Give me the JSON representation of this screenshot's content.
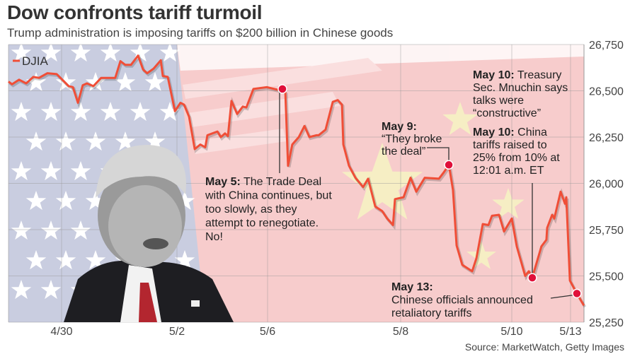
{
  "header": {
    "title": "Dow confronts tariff turmoil",
    "subtitle": "Trump administration is imposing tariffs on $200 billion in Chinese goods"
  },
  "source": "Source: MarketWatch, Getty Images",
  "colors": {
    "line": "#f04e37",
    "marker": "#e0103a",
    "background_pink": "#f7cccc",
    "flag_blue": "#c9cde0",
    "star_yellow": "#f6eec4"
  },
  "chart_data": {
    "type": "line",
    "title": "Dow confronts tariff turmoil",
    "ylim": [
      25250,
      26750
    ],
    "y_axis_side": "right",
    "y_ticks": [
      "26,750",
      "26,500",
      "26,250",
      "26,000",
      "25,750",
      "25,500",
      "25,250"
    ],
    "y_tick_values": [
      26750,
      26500,
      26250,
      26000,
      25750,
      25500,
      25250
    ],
    "x_ticks": [
      "4/30",
      "5/2",
      "5/6",
      "5/8",
      "5/10",
      "5/13"
    ],
    "grid": true,
    "legend": {
      "position": "top-left",
      "entries": [
        "DJIA"
      ]
    },
    "series": [
      {
        "name": "DJIA",
        "points": [
          [
            "4/29 09:30",
            26550
          ],
          [
            "4/29 09:56",
            26535
          ],
          [
            "4/29 10:48",
            26560
          ],
          [
            "4/29 11:40",
            26540
          ],
          [
            "4/29 12:32",
            26575
          ],
          [
            "4/29 13:14",
            26570
          ],
          [
            "4/29 14:16",
            26595
          ],
          [
            "4/29 15:24",
            26590
          ],
          [
            "4/30 09:35",
            26560
          ],
          [
            "4/30 10:18",
            26525
          ],
          [
            "4/30 10:47",
            26520
          ],
          [
            "4/30 11:21",
            26435
          ],
          [
            "4/30 11:54",
            26530
          ],
          [
            "4/30 12:23",
            26540
          ],
          [
            "4/30 13:06",
            26525
          ],
          [
            "4/30 13:59",
            26570
          ],
          [
            "4/30 15:35",
            26570
          ],
          [
            "5/1 09:40",
            26660
          ],
          [
            "5/1 10:13",
            26640
          ],
          [
            "5/1 10:51",
            26640
          ],
          [
            "5/1 11:39",
            26690
          ],
          [
            "5/1 12:12",
            26615
          ],
          [
            "5/1 12:40",
            26595
          ],
          [
            "5/1 13:23",
            26620
          ],
          [
            "5/1 14:11",
            26665
          ],
          [
            "5/1 14:25",
            26580
          ],
          [
            "5/1 14:58",
            26575
          ],
          [
            "5/1 15:46",
            26390
          ],
          [
            "5/2 10:00",
            26435
          ],
          [
            "5/2 10:31",
            26425
          ],
          [
            "5/2 11:14",
            26360
          ],
          [
            "5/2 12:03",
            26185
          ],
          [
            "5/2 12:51",
            26210
          ],
          [
            "5/2 13:34",
            26195
          ],
          [
            "5/2 13:52",
            26260
          ],
          [
            "5/2 15:18",
            26280
          ],
          [
            "5/2 15:48",
            26250
          ],
          [
            "5/3 09:54",
            26270
          ],
          [
            "5/3 10:19",
            26255
          ],
          [
            "5/3 10:49",
            26445
          ],
          [
            "5/3 11:38",
            26375
          ],
          [
            "5/3 12:27",
            26415
          ],
          [
            "5/3 12:57",
            26410
          ],
          [
            "5/3 13:58",
            26510
          ],
          [
            "5/3 15:54",
            26520
          ],
          [
            "5/6 10:32",
            26505
          ],
          [
            "5/6 10:57",
            26510
          ],
          [
            "5/6 11:14",
            26490
          ],
          [
            "5/6 11:30",
            26095
          ],
          [
            "5/6 11:55",
            26210
          ],
          [
            "5/6 12:33",
            26250
          ],
          [
            "5/6 13:06",
            26310
          ],
          [
            "5/6 13:35",
            26250
          ],
          [
            "5/6 14:16",
            26260
          ],
          [
            "5/6 14:29",
            26260
          ],
          [
            "5/6 15:10",
            26290
          ],
          [
            "5/6 15:52",
            26440
          ],
          [
            "5/7 09:51",
            26450
          ],
          [
            "5/7 10:16",
            26425
          ],
          [
            "5/7 10:24",
            26210
          ],
          [
            "5/7 10:57",
            26095
          ],
          [
            "5/7 11:35",
            26030
          ],
          [
            "5/7 12:20",
            25980
          ],
          [
            "5/7 12:49",
            26025
          ],
          [
            "5/7 13:31",
            25875
          ],
          [
            "5/7 14:12",
            25850
          ],
          [
            "5/7 14:41",
            25810
          ],
          [
            "5/7 15:15",
            25775
          ],
          [
            "5/7 15:27",
            25915
          ],
          [
            "5/8 09:50",
            25925
          ],
          [
            "5/8 10:39",
            26030
          ],
          [
            "5/8 11:19",
            25955
          ],
          [
            "5/8 12:18",
            26030
          ],
          [
            "5/8 13:57",
            26025
          ],
          [
            "5/8 14:31",
            26060
          ],
          [
            "5/8 15:06",
            26100
          ],
          [
            "5/8 15:35",
            25965
          ],
          [
            "5/9 09:30",
            25665
          ],
          [
            "5/9 10:10",
            25560
          ],
          [
            "5/9 11:20",
            25525
          ],
          [
            "5/9 11:50",
            25595
          ],
          [
            "5/9 12:35",
            25780
          ],
          [
            "5/9 13:15",
            25775
          ],
          [
            "5/9 13:40",
            25825
          ],
          [
            "5/9 14:30",
            25830
          ],
          [
            "5/9 15:05",
            25740
          ],
          [
            "5/10 09:30",
            25810
          ],
          [
            "5/10 10:03",
            25660
          ],
          [
            "5/10 10:59",
            25500
          ],
          [
            "5/10 11:23",
            25525
          ],
          [
            "5/10 11:46",
            25490
          ],
          [
            "5/10 12:47",
            25660
          ],
          [
            "5/10 13:20",
            25695
          ],
          [
            "5/10 13:25",
            25760
          ],
          [
            "5/10 13:58",
            25830
          ],
          [
            "5/10 14:12",
            25810
          ],
          [
            "5/10 14:54",
            25955
          ],
          [
            "5/10 15:23",
            25890
          ],
          [
            "5/10 15:32",
            25925
          ],
          [
            "5/10 15:56",
            25475
          ],
          [
            "5/13 10:12",
            25405
          ],
          [
            "5/13 10:59",
            25340
          ]
        ]
      }
    ],
    "annotations": [
      {
        "at": [
          "5/6 10:57",
          26510
        ],
        "label": "May 5:",
        "lines": [
          " The Trade Deal",
          "with China continues, but",
          "too slowly, as they",
          "attempt to renegotiate.",
          "No!"
        ]
      },
      {
        "at": [
          "5/8 15:06",
          26100
        ],
        "label": "May 9:",
        "lines": [
          "“They broke",
          "the deal”"
        ]
      },
      {
        "at": null,
        "label": "May 10:",
        "lines": [
          " Treasury",
          "Sec. Mnuchin says",
          "talks were",
          "“constructive”"
        ]
      },
      {
        "at": [
          "5/10 11:46",
          25490
        ],
        "label": "May 10:",
        "lines": [
          " China",
          "tariffs raised to",
          "25% from 10% at",
          "12:01 a.m. ET"
        ]
      },
      {
        "at": [
          "5/13 10:12",
          25405
        ],
        "label": "May 13:",
        "lines": [
          "Chinese officials announced",
          "retaliatory tariffs"
        ]
      }
    ]
  }
}
